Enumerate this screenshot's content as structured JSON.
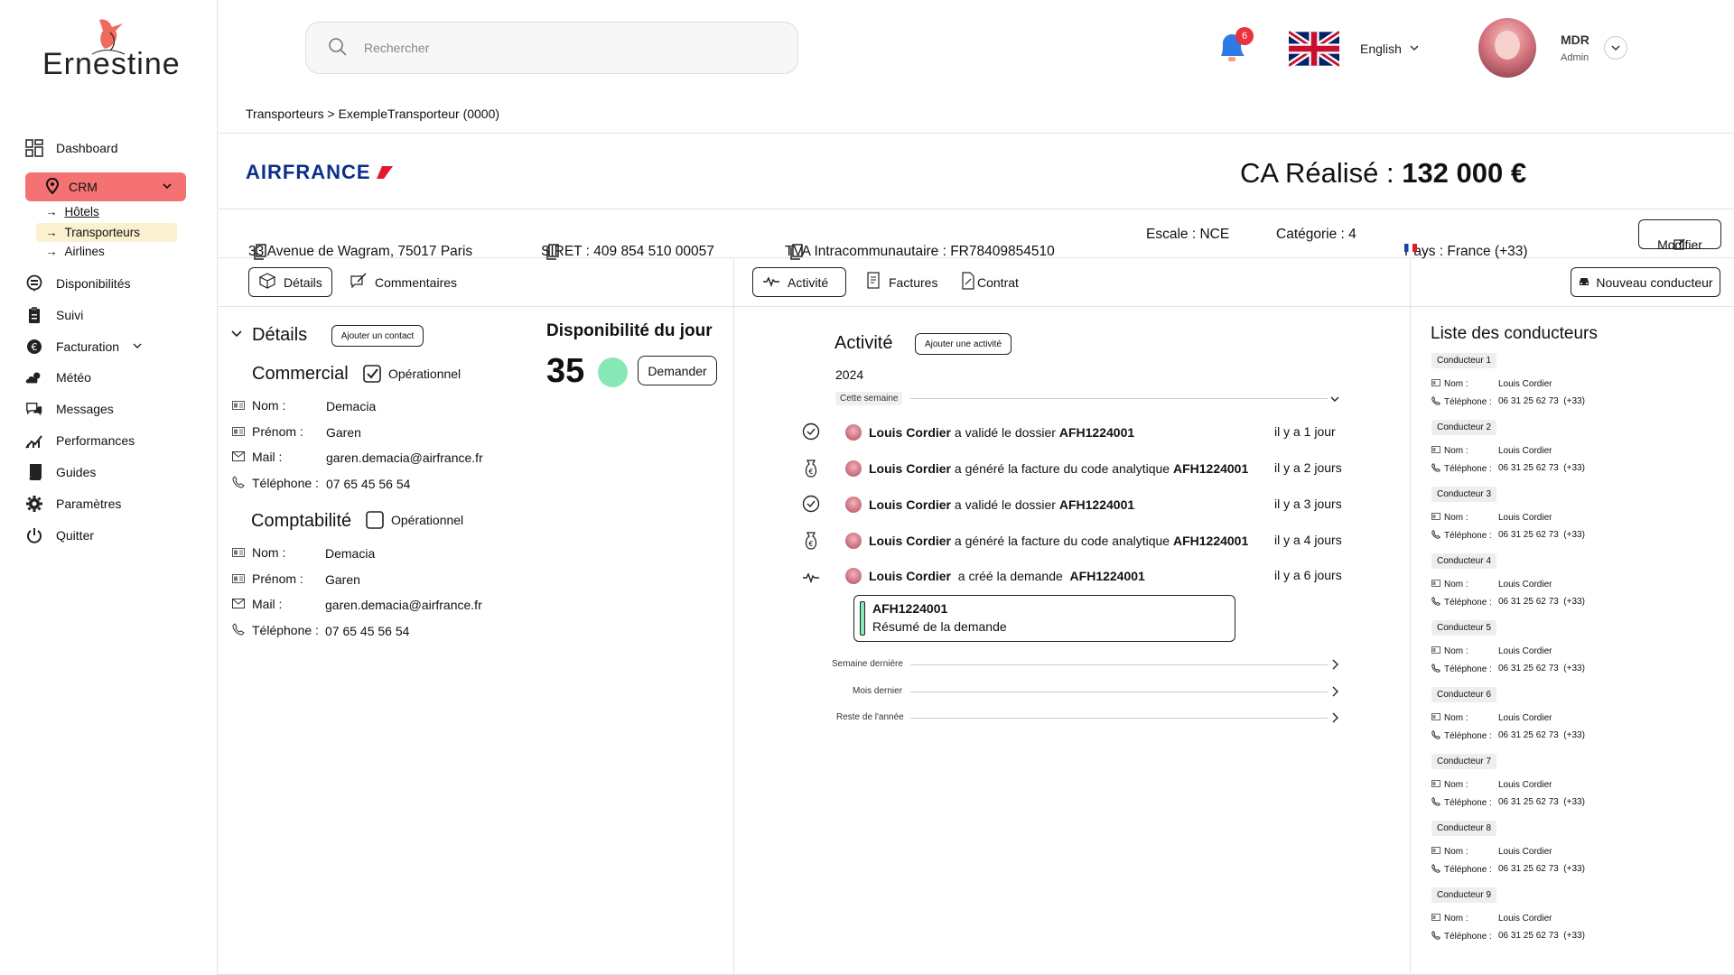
{
  "app": {
    "logo": "Ernestine"
  },
  "sidebar": {
    "dashboard": "Dashboard",
    "crm": "CRM",
    "crm_sub": [
      "Hôtels",
      "Transporteurs",
      "Airlines"
    ],
    "items": [
      "Disponibilités",
      "Suivi",
      "Facturation",
      "Météo",
      "Messages",
      "Performances",
      "Guides",
      "Paramètres",
      "Quitter"
    ]
  },
  "topbar": {
    "search_placeholder": "Rechercher",
    "notifications": "6",
    "language": "English",
    "user_name": "MDR",
    "user_role": "Admin"
  },
  "breadcrumb": "Transporteurs > ExempleTransporteur (0000)",
  "company": {
    "logo": "AIRFRANCE",
    "ca_label": "CA Réalisé : ",
    "ca_value": "132 000 €",
    "address": "33 Avenue de Wagram, 75017 Paris",
    "siret": "SIRET : 409 854 510 00057",
    "tva": "TVA Intracommunautaire : FR78409854510",
    "escale": "Escale : NCE",
    "categorie": "Catégorie : 4",
    "pays": "Pays : France (+33)",
    "modifier": "Modifier"
  },
  "tabs_left": [
    "Détails",
    "Commentaires"
  ],
  "tabs_mid": [
    "Activité",
    "Factures",
    "Contrat"
  ],
  "new_driver": "Nouveau conducteur",
  "details": {
    "title": "Détails",
    "add_contact": "Ajouter un contact",
    "commercial": "Commercial",
    "comptabilite": "Comptabilité",
    "operationnel": "Opérationnel",
    "labels": [
      "Nom :",
      "Prénom :",
      "Mail :",
      "Téléphone :"
    ],
    "commercial_values": [
      "Demacia",
      "Garen",
      "garen.demacia@airfrance.fr",
      "07 65 45 56 54"
    ],
    "compta_values": [
      "Demacia",
      "Garen",
      "garen.demacia@airfrance.fr",
      "07 65 45 56 54"
    ],
    "dispo_title": "Disponibilité du jour",
    "dispo_value": "35",
    "demander": "Demander"
  },
  "activity": {
    "title": "Activité",
    "add": "Ajouter une activité",
    "year": "2024",
    "this_week": "Cette semaine",
    "rows": [
      {
        "name": "Louis Cordier",
        "action": " a validé le dossier ",
        "code": "AFH1224001",
        "when": "il y a 1 jour"
      },
      {
        "name": "Louis Cordier",
        "action": " a généré la facture du code analytique ",
        "code": "AFH1224001",
        "when": "il y a 2 jours"
      },
      {
        "name": "Louis Cordier",
        "action": " a validé le dossier ",
        "code": "AFH1224001",
        "when": "il y a 3 jours"
      },
      {
        "name": "Louis Cordier",
        "action": " a généré la facture du code analytique ",
        "code": "AFH1224001",
        "when": "il y a 4 jours"
      },
      {
        "name": "Louis Cordier",
        "action": "  a créé la demande  ",
        "code": "AFH1224001",
        "when": "il y a 6 jours"
      }
    ],
    "card_code": "AFH1224001",
    "card_text": "Résumé de la demande",
    "periods": [
      "Semaine dernière",
      "Mois dernier",
      "Reste de l'année"
    ]
  },
  "drivers": {
    "title": "Liste des conducteurs",
    "nom_label": "Nom :",
    "tel_label": "Téléphone :",
    "list": [
      {
        "badge": "Conducteur 1",
        "nom": "Louis Cordier",
        "tel": "06 31 25 62 73  (+33)"
      },
      {
        "badge": "Conducteur 2",
        "nom": "Louis Cordier",
        "tel": "06 31 25 62 73  (+33)"
      },
      {
        "badge": "Conducteur 3",
        "nom": "Louis Cordier",
        "tel": "06 31 25 62 73  (+33)"
      },
      {
        "badge": "Conducteur 4",
        "nom": "Louis Cordier",
        "tel": "06 31 25 62 73  (+33)"
      },
      {
        "badge": "Conducteur 5",
        "nom": "Louis Cordier",
        "tel": "06 31 25 62 73  (+33)"
      },
      {
        "badge": "Conducteur 6",
        "nom": "Louis Cordier",
        "tel": "06 31 25 62 73  (+33)"
      },
      {
        "badge": "Conducteur 7",
        "nom": "Louis Cordier",
        "tel": "06 31 25 62 73  (+33)"
      },
      {
        "badge": "Conducteur 8",
        "nom": "Louis Cordier",
        "tel": "06 31 25 62 73  (+33)"
      },
      {
        "badge": "Conducteur 9",
        "nom": "Louis Cordier",
        "tel": "06 31 25 62 73  (+33)"
      }
    ]
  },
  "colors": {
    "crm_active": "#f47272",
    "sub_active": "#fbf0cf",
    "dispo": "#86e8b4",
    "airfrance_blue": "#0b2f8a",
    "airfrance_red": "#e3182d",
    "notif": "#e8333c",
    "bell": "#2f7be6"
  }
}
